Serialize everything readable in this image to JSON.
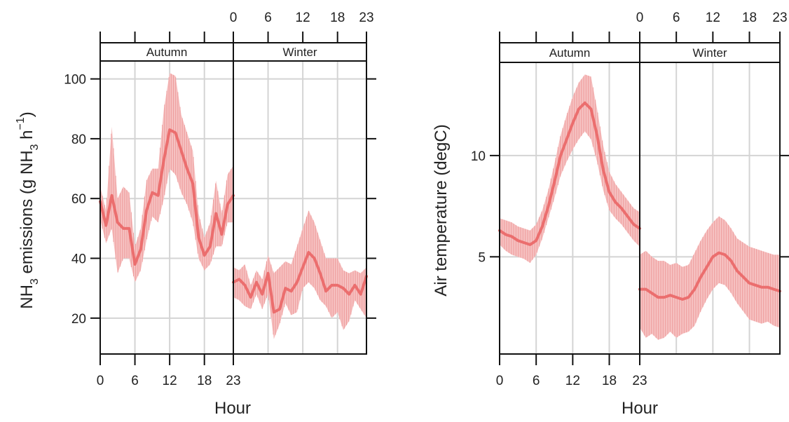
{
  "colors": {
    "line": "#eb6e6e",
    "ribbon": "#f6c2c2",
    "hatch": "#ee9c9c",
    "grid": "#d4d4d4",
    "frame": "#111111"
  },
  "chart_data": [
    {
      "type": "line",
      "panels": [
        "Autumn",
        "Winter"
      ],
      "xlabel": "Hour",
      "ylabel": {
        "pre": "NH",
        "sub": "3",
        "mid": " emissions (g NH",
        "sub2": "3",
        "post": " h",
        "sup": "−1",
        "end": ")"
      },
      "x_ticks": [
        0,
        6,
        12,
        18,
        23
      ],
      "x_tick_labels": [
        "0",
        "6",
        "12",
        "18",
        "23"
      ],
      "xlim": [
        0,
        23
      ],
      "y_ticks": [
        20,
        40,
        60,
        80,
        100
      ],
      "y_tick_labels": [
        "20",
        "40",
        "60",
        "80",
        "100"
      ],
      "ylim": [
        8,
        106
      ],
      "grid": true,
      "series": [
        {
          "panel": "Autumn",
          "x": [
            0,
            1,
            2,
            3,
            4,
            5,
            6,
            7,
            8,
            9,
            10,
            11,
            12,
            13,
            14,
            15,
            16,
            17,
            18,
            19,
            20,
            21,
            22,
            23
          ],
          "mean": [
            59,
            51,
            61,
            52,
            50,
            50,
            38,
            43,
            56,
            62,
            61,
            73,
            83,
            82,
            76,
            70,
            65,
            47,
            41,
            44,
            55,
            48,
            58,
            61
          ],
          "lower": [
            53,
            45,
            50,
            35,
            40,
            40,
            32,
            36,
            46,
            54,
            52,
            60,
            70,
            68,
            62,
            58,
            52,
            40,
            36,
            38,
            44,
            44,
            52,
            52
          ],
          "upper": [
            64,
            56,
            84,
            60,
            64,
            62,
            44,
            50,
            66,
            70,
            70,
            90,
            102,
            101,
            88,
            82,
            76,
            55,
            47,
            52,
            66,
            55,
            68,
            71
          ]
        },
        {
          "panel": "Winter",
          "x": [
            0,
            1,
            2,
            3,
            4,
            5,
            6,
            7,
            8,
            9,
            10,
            11,
            12,
            13,
            14,
            15,
            16,
            17,
            18,
            19,
            20,
            21,
            22,
            23
          ],
          "mean": [
            32,
            33,
            31,
            27,
            32,
            28,
            35,
            22,
            23,
            30,
            29,
            32,
            37,
            42,
            40,
            35,
            29,
            31,
            31,
            30,
            28,
            31,
            28,
            34
          ],
          "lower": [
            27,
            26,
            24,
            23,
            28,
            23,
            28,
            13,
            18,
            25,
            21,
            22,
            30,
            32,
            30,
            26,
            24,
            20,
            22,
            16,
            19,
            26,
            23,
            20
          ],
          "upper": [
            37,
            36,
            38,
            31,
            36,
            33,
            41,
            35,
            37,
            39,
            38,
            44,
            50,
            56,
            52,
            46,
            40,
            40,
            40,
            36,
            35,
            36,
            35,
            37
          ]
        }
      ]
    },
    {
      "type": "line",
      "panels": [
        "Autumn",
        "Winter"
      ],
      "xlabel": "Hour",
      "ylabel": "Air temperature (degC)",
      "x_ticks": [
        0,
        6,
        12,
        18,
        23
      ],
      "x_tick_labels": [
        "0",
        "6",
        "12",
        "18",
        "23"
      ],
      "xlim": [
        0,
        23
      ],
      "y_ticks": [
        5,
        10
      ],
      "y_tick_labels": [
        "5",
        "10"
      ],
      "ylim": [
        0.2,
        14.6
      ],
      "grid": true,
      "series": [
        {
          "panel": "Autumn",
          "x": [
            0,
            1,
            2,
            3,
            4,
            5,
            6,
            7,
            8,
            9,
            10,
            11,
            12,
            13,
            14,
            15,
            16,
            17,
            18,
            19,
            20,
            21,
            22,
            23
          ],
          "mean": [
            6.3,
            6.1,
            6.0,
            5.8,
            5.7,
            5.6,
            5.8,
            6.5,
            7.5,
            8.7,
            10.0,
            10.8,
            11.6,
            12.3,
            12.6,
            12.3,
            11.0,
            9.3,
            8.2,
            7.7,
            7.4,
            7.0,
            6.6,
            6.4
          ],
          "lower": [
            5.6,
            5.3,
            5.1,
            5.0,
            4.9,
            4.7,
            5.1,
            5.9,
            6.9,
            7.9,
            9.0,
            9.7,
            10.3,
            10.8,
            11.2,
            10.8,
            9.7,
            8.3,
            7.3,
            6.9,
            6.6,
            6.2,
            5.8,
            5.5
          ],
          "upper": [
            6.9,
            6.8,
            6.7,
            6.5,
            6.4,
            6.3,
            6.6,
            7.3,
            8.3,
            9.6,
            11.0,
            12.0,
            12.9,
            13.6,
            14.0,
            13.9,
            12.3,
            10.5,
            9.2,
            8.6,
            8.2,
            7.8,
            7.4,
            7.2
          ],
          "spans_days": true
        },
        {
          "panel": "Winter",
          "x": [
            0,
            1,
            2,
            3,
            4,
            5,
            6,
            7,
            8,
            9,
            10,
            11,
            12,
            13,
            14,
            15,
            16,
            17,
            18,
            19,
            20,
            21,
            22,
            23
          ],
          "mean": [
            3.4,
            3.4,
            3.2,
            3.0,
            3.0,
            3.1,
            3.0,
            2.9,
            3.0,
            3.4,
            4.0,
            4.5,
            5.0,
            5.2,
            5.1,
            4.8,
            4.3,
            4.0,
            3.7,
            3.6,
            3.5,
            3.5,
            3.4,
            3.3
          ],
          "lower": [
            1.5,
            1.0,
            1.2,
            0.9,
            1.0,
            1.3,
            1.0,
            1.2,
            1.3,
            1.6,
            2.3,
            2.9,
            3.4,
            3.7,
            3.6,
            3.2,
            2.7,
            2.3,
            1.9,
            1.8,
            1.7,
            1.8,
            1.6,
            1.5
          ],
          "upper": [
            5.1,
            5.3,
            5.0,
            4.8,
            4.8,
            4.6,
            4.7,
            4.5,
            4.6,
            5.2,
            5.8,
            6.3,
            6.7,
            7.0,
            6.8,
            6.4,
            5.9,
            5.7,
            5.5,
            5.4,
            5.3,
            5.2,
            5.1,
            5.1
          ]
        }
      ]
    }
  ]
}
